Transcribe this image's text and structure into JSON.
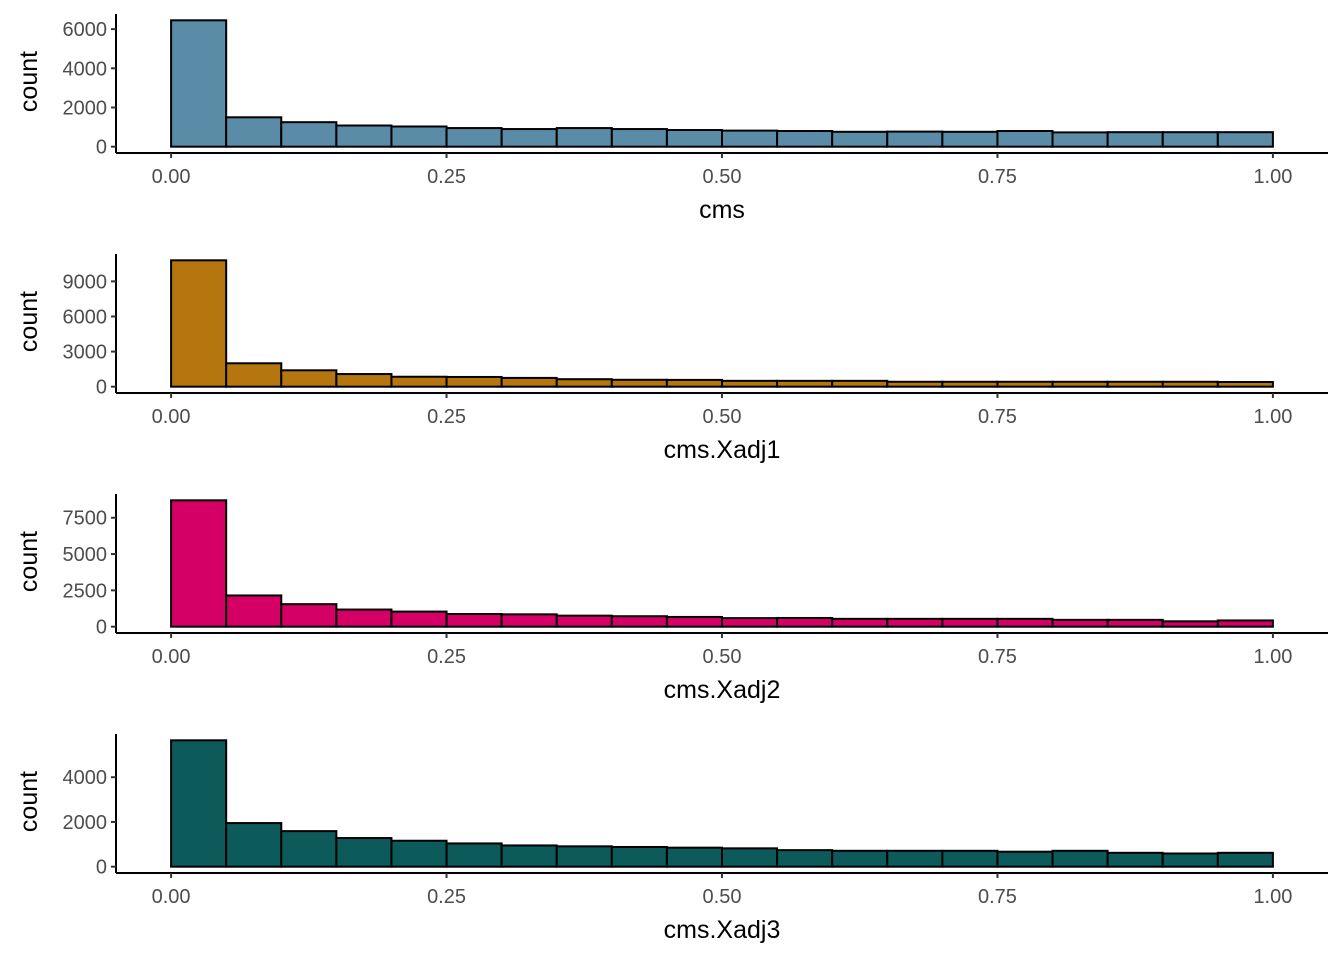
{
  "chart_data": [
    {
      "type": "bar",
      "xlabel": "cms",
      "ylabel": "count",
      "color": "#5a8ca8",
      "bin_width": 0.05,
      "bin_starts": [
        0,
        0.05,
        0.1,
        0.15,
        0.2,
        0.25,
        0.3,
        0.35,
        0.4,
        0.45,
        0.5,
        0.55,
        0.6,
        0.65,
        0.7,
        0.75,
        0.8,
        0.85,
        0.9,
        0.95
      ],
      "values": [
        6450,
        1500,
        1250,
        1080,
        1030,
        950,
        900,
        950,
        900,
        850,
        820,
        800,
        760,
        770,
        760,
        800,
        730,
        740,
        740,
        740
      ],
      "xticks": [
        "0.00",
        "0.25",
        "0.50",
        "0.75",
        "1.00"
      ],
      "yticks": [
        "0",
        "2000",
        "4000",
        "6000"
      ],
      "xlim": [
        -0.05,
        1.05
      ],
      "grid": false
    },
    {
      "type": "bar",
      "xlabel": "cms.Xadj1",
      "ylabel": "count",
      "color": "#b5750f",
      "bin_width": 0.05,
      "bin_starts": [
        0,
        0.05,
        0.1,
        0.15,
        0.2,
        0.25,
        0.3,
        0.35,
        0.4,
        0.45,
        0.5,
        0.55,
        0.6,
        0.65,
        0.7,
        0.75,
        0.8,
        0.85,
        0.9,
        0.95
      ],
      "values": [
        10800,
        2000,
        1400,
        1080,
        850,
        830,
        750,
        640,
        590,
        580,
        500,
        500,
        500,
        420,
        420,
        420,
        420,
        420,
        420,
        400
      ],
      "xticks": [
        "0.00",
        "0.25",
        "0.50",
        "0.75",
        "1.00"
      ],
      "yticks": [
        "0",
        "3000",
        "6000",
        "9000"
      ],
      "xlim": [
        -0.05,
        1.05
      ],
      "grid": false
    },
    {
      "type": "bar",
      "xlabel": "cms.Xadj2",
      "ylabel": "count",
      "color": "#d50066",
      "bin_width": 0.05,
      "bin_starts": [
        0,
        0.05,
        0.1,
        0.15,
        0.2,
        0.25,
        0.3,
        0.35,
        0.4,
        0.45,
        0.5,
        0.55,
        0.6,
        0.65,
        0.7,
        0.75,
        0.8,
        0.85,
        0.9,
        0.95
      ],
      "values": [
        8700,
        2150,
        1550,
        1180,
        1040,
        870,
        850,
        760,
        720,
        670,
        590,
        600,
        540,
        540,
        540,
        540,
        470,
        470,
        370,
        430
      ],
      "xticks": [
        "0.00",
        "0.25",
        "0.50",
        "0.75",
        "1.00"
      ],
      "yticks": [
        "0",
        "2500",
        "5000",
        "7500"
      ],
      "xlim": [
        -0.05,
        1.05
      ],
      "grid": false
    },
    {
      "type": "bar",
      "xlabel": "cms.Xadj3",
      "ylabel": "count",
      "color": "#0d5a5b",
      "bin_width": 0.05,
      "bin_starts": [
        0,
        0.05,
        0.1,
        0.15,
        0.2,
        0.25,
        0.3,
        0.35,
        0.4,
        0.45,
        0.5,
        0.55,
        0.6,
        0.65,
        0.7,
        0.75,
        0.8,
        0.85,
        0.9,
        0.95
      ],
      "values": [
        5650,
        1950,
        1590,
        1280,
        1160,
        1040,
        950,
        910,
        880,
        850,
        820,
        740,
        710,
        710,
        710,
        670,
        710,
        620,
        590,
        620
      ],
      "xticks": [
        "0.00",
        "0.25",
        "0.50",
        "0.75",
        "1.00"
      ],
      "yticks": [
        "0",
        "2000",
        "4000"
      ],
      "xlim": [
        -0.05,
        1.05
      ],
      "grid": false
    }
  ]
}
